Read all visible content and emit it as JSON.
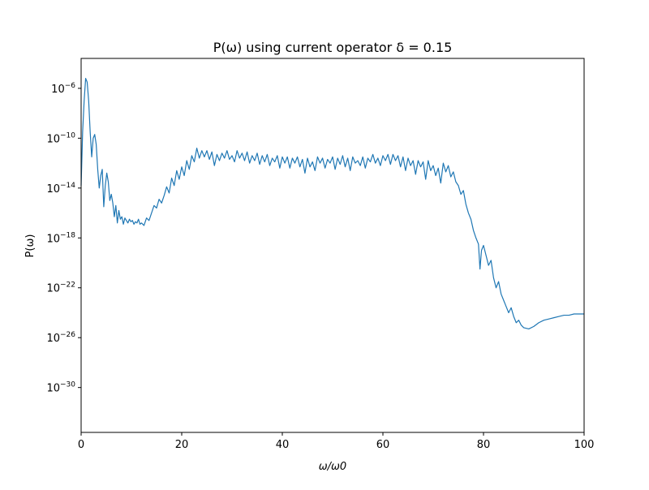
{
  "chart_data": {
    "type": "line",
    "title": "P(ω) using current operator δ = 0.15",
    "xlabel": "ω/ω0",
    "ylabel": "P(ω)",
    "xlim": [
      0,
      100
    ],
    "y_scale": "log",
    "log10_ylim": [
      -33.6,
      -3.6
    ],
    "x_ticks": [
      "0",
      "20",
      "40",
      "60",
      "80",
      "100"
    ],
    "x_tick_values": [
      0,
      20,
      40,
      60,
      80,
      100
    ],
    "y_tick_exponents": [
      -6,
      -10,
      -14,
      -18,
      -22,
      -26,
      -30
    ],
    "y_tick_base": "10",
    "grid": false,
    "legend": "none",
    "line_color": "#1f77b4",
    "series": [
      {
        "values_note": "x in ω/ω0, y as log10(P)",
        "x": [
          0,
          0.3,
          0.6,
          0.9,
          1.2,
          1.5,
          1.8,
          2.1,
          2.4,
          2.7,
          3.0,
          3.3,
          3.6,
          3.9,
          4.2,
          4.5,
          4.8,
          5.1,
          5.4,
          5.7,
          6.0,
          6.3,
          6.6,
          6.9,
          7.2,
          7.5,
          7.8,
          8.1,
          8.4,
          8.7,
          9.0,
          9.3,
          9.6,
          9.9,
          10.2,
          10.5,
          10.8,
          11.1,
          11.4,
          11.7,
          12.0,
          12.5,
          13.0,
          13.5,
          14.0,
          14.5,
          15.0,
          15.5,
          16.0,
          16.5,
          17.0,
          17.5,
          18.0,
          18.5,
          19.0,
          19.5,
          20.0,
          20.5,
          21.0,
          21.5,
          22.0,
          22.5,
          23.0,
          23.5,
          24.0,
          24.5,
          25.0,
          25.5,
          26.0,
          26.5,
          27.0,
          27.5,
          28.0,
          28.5,
          29.0,
          29.5,
          30.0,
          30.5,
          31.0,
          31.5,
          32.0,
          32.5,
          33.0,
          33.5,
          34.0,
          34.5,
          35.0,
          35.5,
          36.0,
          36.5,
          37.0,
          37.5,
          38.0,
          38.5,
          39.0,
          39.5,
          40.0,
          40.5,
          41.0,
          41.5,
          42.0,
          42.5,
          43.0,
          43.5,
          44.0,
          44.5,
          45.0,
          45.5,
          46.0,
          46.5,
          47.0,
          47.5,
          48.0,
          48.5,
          49.0,
          49.5,
          50.0,
          50.5,
          51.0,
          51.5,
          52.0,
          52.5,
          53.0,
          53.5,
          54.0,
          54.5,
          55.0,
          55.5,
          56.0,
          56.5,
          57.0,
          57.5,
          58.0,
          58.5,
          59.0,
          59.5,
          60.0,
          60.5,
          61.0,
          61.5,
          62.0,
          62.5,
          63.0,
          63.5,
          64.0,
          64.5,
          65.0,
          65.5,
          66.0,
          66.5,
          67.0,
          67.5,
          68.0,
          68.5,
          69.0,
          69.5,
          70.0,
          70.5,
          71.0,
          71.5,
          72.0,
          72.5,
          73.0,
          73.5,
          74.0,
          74.5,
          75.0,
          75.5,
          76.0,
          76.5,
          77.0,
          77.5,
          78.0,
          78.5,
          79.0,
          79.3,
          79.6,
          80.0,
          80.5,
          81.0,
          81.5,
          82.0,
          82.5,
          83.0,
          83.5,
          84.0,
          84.5,
          85.0,
          85.5,
          86.0,
          86.5,
          87.0,
          87.5,
          88.0,
          89.0,
          90.0,
          91.0,
          92.0,
          93.0,
          94.0,
          95.0,
          96.0,
          97.0,
          98.0,
          99.0,
          100.0
        ],
        "y": [
          -13.8,
          -9.5,
          -7.0,
          -5.2,
          -5.5,
          -7.0,
          -9.5,
          -11.5,
          -10.0,
          -9.7,
          -10.5,
          -12.5,
          -14.0,
          -13.0,
          -12.5,
          -15.5,
          -13.8,
          -12.8,
          -13.5,
          -15.0,
          -14.5,
          -15.2,
          -16.3,
          -15.4,
          -16.8,
          -15.8,
          -16.5,
          -16.3,
          -16.9,
          -16.4,
          -16.6,
          -16.8,
          -16.5,
          -16.7,
          -16.6,
          -16.9,
          -16.7,
          -16.8,
          -16.5,
          -16.9,
          -16.8,
          -17.0,
          -16.4,
          -16.6,
          -16.0,
          -15.4,
          -15.6,
          -14.9,
          -15.2,
          -14.6,
          -13.9,
          -14.4,
          -13.2,
          -13.8,
          -12.6,
          -13.3,
          -12.3,
          -13.0,
          -11.8,
          -12.5,
          -11.4,
          -11.9,
          -10.8,
          -11.6,
          -11.0,
          -11.5,
          -11.0,
          -11.7,
          -11.1,
          -12.2,
          -11.3,
          -11.8,
          -11.2,
          -11.6,
          -11.0,
          -11.7,
          -11.4,
          -11.9,
          -11.0,
          -11.6,
          -11.2,
          -11.8,
          -11.1,
          -12.0,
          -11.4,
          -11.8,
          -11.2,
          -12.1,
          -11.4,
          -11.9,
          -11.3,
          -12.2,
          -11.6,
          -11.9,
          -11.4,
          -12.4,
          -11.5,
          -12.0,
          -11.5,
          -12.4,
          -11.6,
          -12.0,
          -11.5,
          -12.3,
          -11.7,
          -12.8,
          -11.6,
          -12.3,
          -11.9,
          -12.6,
          -11.5,
          -12.0,
          -11.6,
          -12.4,
          -11.7,
          -12.0,
          -11.5,
          -12.5,
          -11.6,
          -12.1,
          -11.4,
          -12.3,
          -11.6,
          -12.6,
          -11.5,
          -12.0,
          -11.8,
          -12.2,
          -11.5,
          -12.4,
          -11.6,
          -11.9,
          -11.3,
          -12.0,
          -11.6,
          -12.2,
          -11.4,
          -11.8,
          -11.3,
          -12.1,
          -11.3,
          -11.8,
          -11.4,
          -12.3,
          -11.5,
          -12.6,
          -11.6,
          -12.2,
          -11.8,
          -12.9,
          -11.8,
          -12.3,
          -11.9,
          -13.3,
          -11.8,
          -12.6,
          -12.2,
          -13.0,
          -12.4,
          -13.6,
          -12.0,
          -12.7,
          -12.2,
          -13.1,
          -12.7,
          -13.5,
          -13.8,
          -14.5,
          -14.2,
          -15.3,
          -16.0,
          -16.5,
          -17.4,
          -18.0,
          -18.5,
          -20.5,
          -19.0,
          -18.6,
          -19.4,
          -20.2,
          -19.8,
          -21.2,
          -22.0,
          -21.5,
          -22.5,
          -23.0,
          -23.5,
          -24.0,
          -23.6,
          -24.3,
          -24.8,
          -24.6,
          -25.0,
          -25.2,
          -25.3,
          -25.1,
          -24.8,
          -24.6,
          -24.5,
          -24.4,
          -24.3,
          -24.2,
          -24.2,
          -24.1,
          -24.1,
          -24.1
        ]
      }
    ]
  }
}
